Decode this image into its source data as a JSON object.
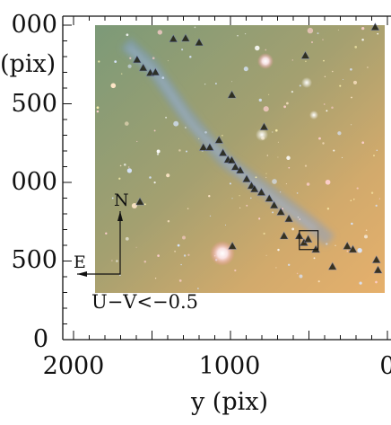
{
  "figure": {
    "xlabel": "y (pix)",
    "ylabel": "(pix)",
    "x_ticks": [
      "2000",
      "1000",
      "0"
    ],
    "y_ticks": [
      "000",
      "500",
      "000",
      "500",
      "0"
    ],
    "color_cut_label": "U−V<−0.5",
    "compass": {
      "north_label": "N",
      "east_label": "E"
    },
    "image_colors": {
      "cool_corner": "#7c9a78",
      "warm_corner": "#e6b06c",
      "marker_fill": "#1c1c10",
      "marker_blue": "#7888c8"
    }
  },
  "chart_data": {
    "type": "scatter",
    "xlabel": "y (pix)",
    "ylabel": "(pix)",
    "xlim": [
      2000,
      0
    ],
    "ylim": [
      0,
      2000
    ],
    "x_reversed": true,
    "grid": false,
    "markers": "triangle",
    "points": [
      {
        "x": 1595,
        "y": 1781
      },
      {
        "x": 1556,
        "y": 1729
      },
      {
        "x": 1511,
        "y": 1697
      },
      {
        "x": 1478,
        "y": 1701
      },
      {
        "x": 1364,
        "y": 1913
      },
      {
        "x": 1286,
        "y": 1917
      },
      {
        "x": 1173,
        "y": 1223
      },
      {
        "x": 1132,
        "y": 1223
      },
      {
        "x": 1073,
        "y": 1269
      },
      {
        "x": 1048,
        "y": 1188
      },
      {
        "x": 1016,
        "y": 1145
      },
      {
        "x": 992,
        "y": 1141
      },
      {
        "x": 969,
        "y": 1098
      },
      {
        "x": 938,
        "y": 1077
      },
      {
        "x": 897,
        "y": 1022
      },
      {
        "x": 866,
        "y": 979
      },
      {
        "x": 847,
        "y": 958
      },
      {
        "x": 803,
        "y": 937
      },
      {
        "x": 786,
        "y": 1353
      },
      {
        "x": 753,
        "y": 898
      },
      {
        "x": 722,
        "y": 855
      },
      {
        "x": 679,
        "y": 812
      },
      {
        "x": 659,
        "y": 660
      },
      {
        "x": 628,
        "y": 769
      },
      {
        "x": 562,
        "y": 660
      },
      {
        "x": 532,
        "y": 617
      },
      {
        "x": 505,
        "y": 639
      },
      {
        "x": 456,
        "y": 574
      },
      {
        "x": 991,
        "y": 1557
      },
      {
        "x": 523,
        "y": 1807
      },
      {
        "x": 1200,
        "y": 1890
      },
      {
        "x": 1577,
        "y": 877
      },
      {
        "x": 988,
        "y": 595
      },
      {
        "x": 350,
        "y": 465
      },
      {
        "x": 256,
        "y": 595
      },
      {
        "x": 220,
        "y": 574
      },
      {
        "x": 70,
        "y": 508
      },
      {
        "x": 60,
        "y": 443
      },
      {
        "x": 78,
        "y": 1988
      }
    ],
    "box": {
      "x0": 561,
      "y0": 573,
      "x1": 442,
      "y1": 693
    }
  }
}
